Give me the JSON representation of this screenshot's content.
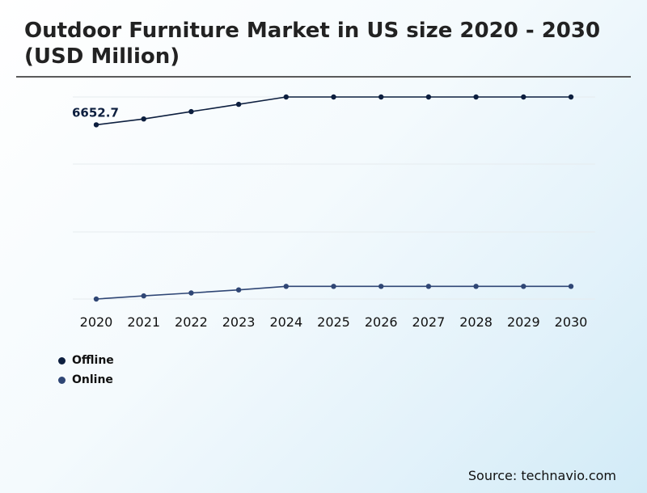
{
  "header": {
    "title": "Outdoor Furniture Market in US size 2020 - 2030 (USD Million)"
  },
  "chart_data": {
    "type": "line",
    "title": "Outdoor Furniture Market in US size 2020 - 2030 (USD Million)",
    "xlabel": "",
    "ylabel": "",
    "x": [
      "2020",
      "2021",
      "2022",
      "2023",
      "2024",
      "2025",
      "2026",
      "2027",
      "2028",
      "2029",
      "2030"
    ],
    "series": [
      {
        "name": "Offline",
        "color": "#0d1f3f",
        "values": [
          6652.7,
          6810,
          7010,
          7210,
          7410,
          7410,
          7410,
          7410,
          7410,
          7410,
          7410
        ]
      },
      {
        "name": "Online",
        "color": "#2f4675",
        "values": [
          1900,
          1985,
          2065,
          2150,
          2245,
          2245,
          2245,
          2245,
          2245,
          2245,
          2245
        ]
      }
    ],
    "data_labels": [
      {
        "series": "Offline",
        "x": "2020",
        "text": "6652.7"
      }
    ],
    "y_axis_labels_shown": false,
    "grid": "horizontal",
    "legend": "bottom-left"
  },
  "legend": {
    "items": [
      {
        "label": "Offline",
        "color": "#0d1f3f"
      },
      {
        "label": "Online",
        "color": "#2f4675"
      }
    ]
  },
  "footer": {
    "source": "Source: technavio.com"
  }
}
